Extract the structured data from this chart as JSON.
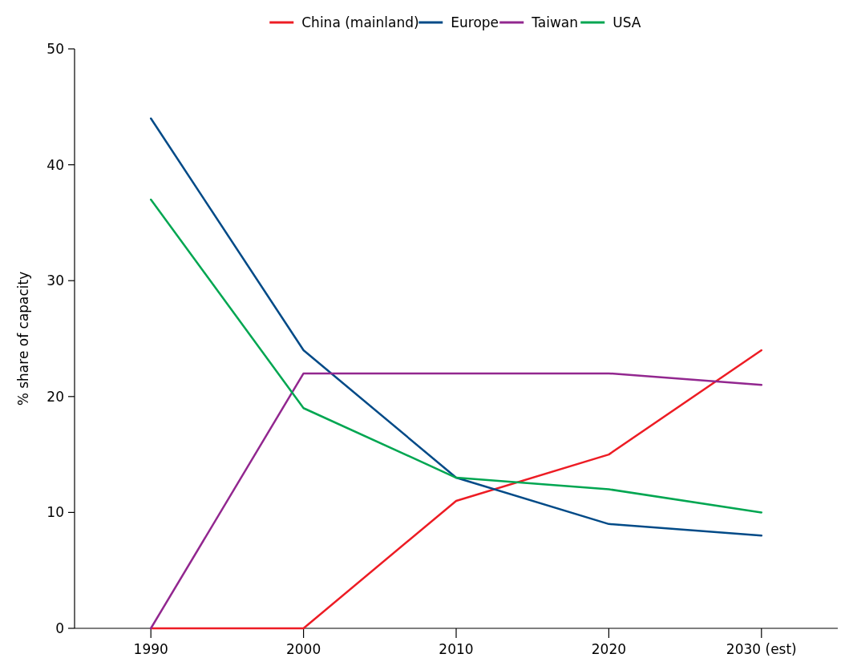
{
  "chart_data": {
    "type": "line",
    "ylabel": "% share of capacity",
    "categories": [
      "1990",
      "2000",
      "2010",
      "2020",
      "2030 (est)"
    ],
    "series": [
      {
        "name": "China (mainland)",
        "color": "#ed1c24",
        "values": [
          0,
          0,
          11,
          15,
          24
        ]
      },
      {
        "name": "Europe",
        "color": "#004a87",
        "values": [
          44,
          24,
          13,
          9,
          8
        ]
      },
      {
        "name": "Taiwan",
        "color": "#92278f",
        "values": [
          0,
          22,
          22,
          22,
          21
        ]
      },
      {
        "name": "USA",
        "color": "#00a651",
        "values": [
          37,
          19,
          13,
          12,
          10
        ]
      }
    ],
    "ylim": [
      0,
      50
    ],
    "yticks": [
      0,
      10,
      20,
      30,
      40,
      50
    ],
    "grid": false,
    "legend": "top",
    "marker": "none",
    "line_style": "solid"
  }
}
